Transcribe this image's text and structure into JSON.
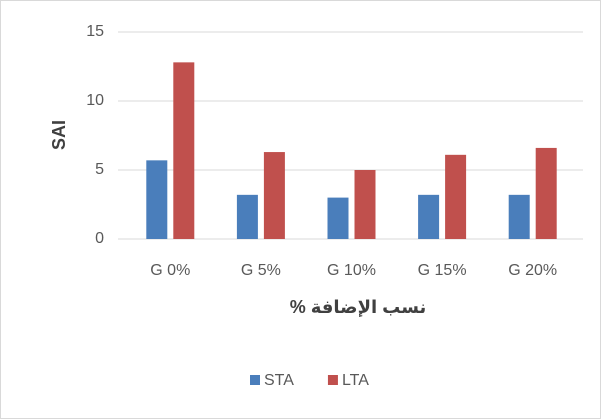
{
  "chart_data": {
    "type": "bar",
    "categories": [
      "G 0%",
      "G 5%",
      "G 10%",
      "G 15%",
      "G 20%"
    ],
    "series": [
      {
        "name": "STA",
        "color": "#4a7ebb",
        "values": [
          5.7,
          3.2,
          3.0,
          3.2,
          3.2
        ]
      },
      {
        "name": "LTA",
        "color": "#c0504d",
        "values": [
          12.8,
          6.3,
          5.0,
          6.1,
          6.6
        ]
      }
    ],
    "ylabel": "SAI",
    "xlabel": "نسب الإضافة %",
    "ylim": [
      0,
      15
    ],
    "yticks": [
      0,
      5,
      10,
      15
    ],
    "grid": true,
    "legend": "bottom"
  }
}
